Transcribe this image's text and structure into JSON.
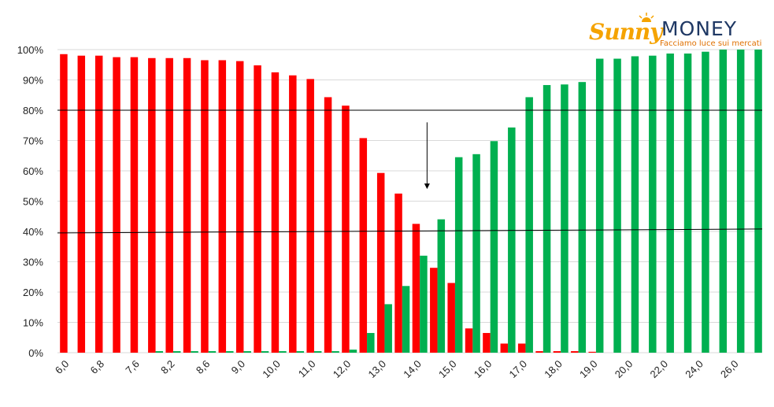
{
  "logo": {
    "brand_left": "Sunny",
    "brand_right": "MONEY",
    "tagline": "Facciamo luce sui mercati"
  },
  "colors": {
    "red": "#ff0000",
    "green": "#00b050",
    "grid": "#d9d9d9",
    "annotation": "#000000"
  },
  "chart_data": {
    "type": "bar",
    "title": "",
    "xlabel": "",
    "ylabel": "",
    "ylim": [
      0,
      100
    ],
    "y_ticks": [
      "0%",
      "10%",
      "20%",
      "30%",
      "40%",
      "50%",
      "60%",
      "70%",
      "80%",
      "90%",
      "100%"
    ],
    "x_tick_labels": [
      "6,0",
      "6,8",
      "7,6",
      "8,2",
      "8,6",
      "9,0",
      "10,0",
      "11,0",
      "12,0",
      "13,0",
      "14,0",
      "15,0",
      "16,0",
      "17,0",
      "18,0",
      "19,0",
      "20,0",
      "22,0",
      "24,0",
      "26,0"
    ],
    "series": [
      {
        "color": "#ff0000",
        "values": [
          98.5,
          98,
          98,
          97.5,
          97.5,
          97.2,
          97.2,
          97.2,
          96.5,
          96.5,
          96.2,
          94.8,
          92.5,
          91.5,
          90.3,
          84.3,
          81.5,
          70.8,
          59.3,
          52.5,
          42.5,
          28,
          23,
          8,
          6.5,
          3,
          3,
          0.5,
          0.5,
          0.5,
          0.3,
          0,
          0,
          0,
          0,
          0,
          0,
          0,
          0,
          0
        ]
      },
      {
        "color": "#00b050",
        "values": [
          0,
          0,
          0,
          0,
          0,
          0.5,
          0.5,
          0.5,
          0.5,
          0.5,
          0.5,
          0.5,
          0.5,
          0.5,
          0.5,
          0.5,
          1,
          6.5,
          16,
          22,
          32,
          44,
          64.5,
          65.5,
          69.8,
          74.3,
          84.3,
          88.3,
          88.5,
          89.3,
          97,
          97,
          97.8,
          98,
          98.7,
          98.7,
          99.3,
          100,
          100,
          100
        ]
      }
    ],
    "annotations": [
      {
        "type": "horizontal-line",
        "y": 40
      },
      {
        "type": "horizontal-line",
        "y": 80
      },
      {
        "type": "arrow-down",
        "x_between": "14,0",
        "from_y": 76,
        "to_y": 54
      }
    ],
    "grid": true,
    "legend": "none"
  }
}
